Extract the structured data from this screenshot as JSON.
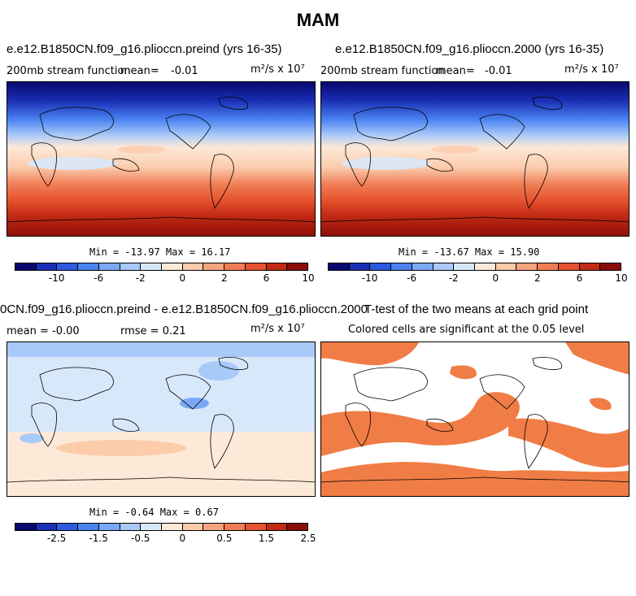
{
  "title": "MAM",
  "panels": {
    "p1": {
      "title": "e.e12.B1850CN.f09_g16.plioccn.preind (yrs 16-35)",
      "left_label": "200mb stream function",
      "mean_label": "mean=",
      "mean_value": "-0.01",
      "units": "m²/s x 10⁷",
      "minmax": "Min = -13.97 Max =  16.17"
    },
    "p2": {
      "title": "e.e12.B1850CN.f09_g16.plioccn.2000 (yrs 16-35)",
      "left_label": "200mb stream function",
      "mean_label": "mean=",
      "mean_value": "-0.01",
      "units": "m²/s x 10⁷",
      "minmax": "Min = -13.67 Max =  15.90"
    },
    "p3": {
      "title": "0CN.f09_g16.plioccn.preind - e.e12.B1850CN.f09_g16.plioccn.2000",
      "mean_text": "mean =  -0.00",
      "rmse_text": "rmse =  0.21",
      "units": "m²/s x 10⁷",
      "minmax": "Min =  -0.64 Max =   0.67"
    },
    "p4": {
      "title": "T-test of the two means at each grid point",
      "subtitle": "Colored cells are significant at the 0.05 level"
    }
  },
  "colorbar_top": {
    "colors": [
      "#08086e",
      "#1a2fb5",
      "#2c5be0",
      "#4a82f0",
      "#7aa8f5",
      "#a9c9f8",
      "#d8e8fb",
      "#fde9d8",
      "#fbcbac",
      "#f6a47e",
      "#f07d55",
      "#e6522e",
      "#c22a14",
      "#8b0d07"
    ],
    "tick_labels": [
      "-10",
      "-6",
      "-2",
      "0",
      "2",
      "6",
      "10"
    ]
  },
  "colorbar_bottom": {
    "colors": [
      "#08086e",
      "#1a2fb5",
      "#2c5be0",
      "#4a82f0",
      "#7aa8f5",
      "#a9c9f8",
      "#d8e8fb",
      "#fde9d8",
      "#fbcbac",
      "#f6a47e",
      "#f07d55",
      "#e6522e",
      "#c22a14",
      "#8b0d07"
    ],
    "tick_labels": [
      "-2.5",
      "-1.5",
      "-0.5",
      "0",
      "0.5",
      "1.5",
      "2.5"
    ]
  }
}
